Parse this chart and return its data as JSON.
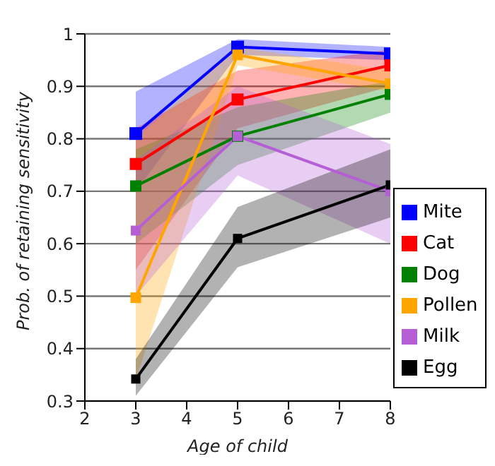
{
  "chart_data": {
    "type": "line",
    "xlabel": "Age of child",
    "ylabel": "Prob. of retaining sensitivity",
    "x": [
      3,
      5,
      8
    ],
    "series": [
      {
        "name": "Mite",
        "color": "#0000ff",
        "values": [
          0.81,
          0.975,
          0.962
        ],
        "lower": [
          0.7,
          0.96,
          0.95
        ],
        "upper": [
          0.89,
          0.99,
          0.975
        ]
      },
      {
        "name": "Cat",
        "color": "#ff0000",
        "values": [
          0.752,
          0.875,
          0.94
        ],
        "lower": [
          0.55,
          0.82,
          0.9
        ],
        "upper": [
          0.82,
          0.93,
          0.97
        ]
      },
      {
        "name": "Dog",
        "color": "#008000",
        "values": [
          0.71,
          0.805,
          0.885
        ],
        "lower": [
          0.6,
          0.75,
          0.85
        ],
        "upper": [
          0.78,
          0.86,
          0.91
        ]
      },
      {
        "name": "Pollen",
        "color": "#ffa500",
        "values": [
          0.497,
          0.96,
          0.905
        ],
        "lower": [
          0.34,
          0.94,
          0.89
        ],
        "upper": [
          0.8,
          0.975,
          0.93
        ]
      },
      {
        "name": "Milk",
        "color": "#b55ed6",
        "values": [
          0.625,
          0.805,
          0.7
        ],
        "lower": [
          0.5,
          0.73,
          0.6
        ],
        "upper": [
          0.76,
          0.9,
          0.79
        ]
      },
      {
        "name": "Egg",
        "color": "#000000",
        "values": [
          0.342,
          0.61,
          0.712
        ],
        "lower": [
          0.31,
          0.555,
          0.65
        ],
        "upper": [
          0.38,
          0.67,
          0.78
        ]
      }
    ],
    "xlim": [
      2,
      8
    ],
    "xticks": [
      2,
      3,
      4,
      5,
      6,
      7,
      8
    ],
    "ylim": [
      0.3,
      1
    ],
    "yticks": [
      0.3,
      0.4,
      0.5,
      0.6,
      0.7,
      0.8,
      0.9,
      1
    ],
    "grid": "y",
    "legend": "right",
    "marker": "square",
    "line_style": "solid"
  }
}
